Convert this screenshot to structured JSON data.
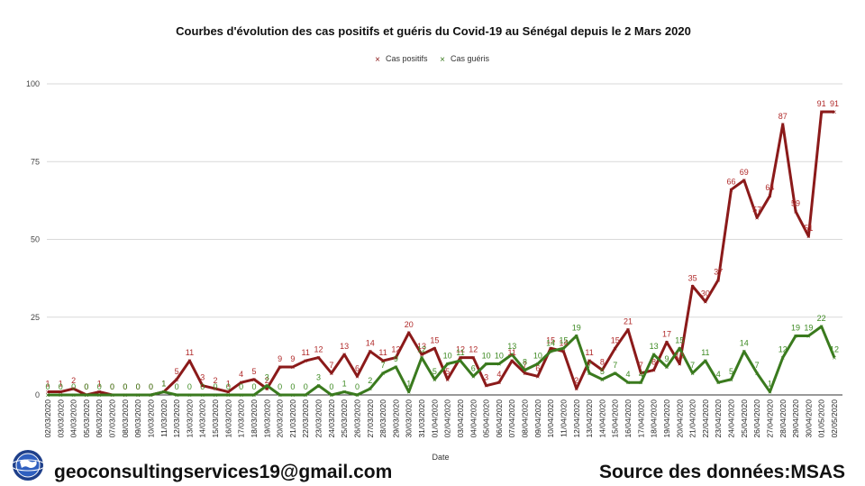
{
  "chart_data": {
    "type": "line",
    "title": "Courbes d'évolution des cas positifs et guéris du Covid-19 au Sénégal depuis le 2 Mars 2020",
    "xlabel": "Date",
    "ylabel": "",
    "ylim": [
      0,
      100
    ],
    "yticks": [
      0,
      25,
      50,
      75,
      100
    ],
    "grid": true,
    "legend_position": "top-center",
    "categories": [
      "02/03/2020",
      "03/03/2020",
      "04/03/2020",
      "05/03/2020",
      "06/03/2020",
      "07/03/2020",
      "08/03/2020",
      "09/03/2020",
      "10/03/2020",
      "11/03/2020",
      "12/03/2020",
      "13/03/2020",
      "14/03/2020",
      "15/03/2020",
      "16/03/2020",
      "17/03/2020",
      "18/03/2020",
      "19/03/2020",
      "20/03/2020",
      "21/03/2020",
      "22/03/2020",
      "23/03/2020",
      "24/03/2020",
      "25/03/2020",
      "26/03/2020",
      "27/03/2020",
      "28/03/2020",
      "29/03/2020",
      "30/03/2020",
      "31/03/2020",
      "01/04/2020",
      "02/04/2020",
      "03/04/2020",
      "04/04/2020",
      "05/04/2020",
      "06/04/2020",
      "07/04/2020",
      "08/04/2020",
      "09/04/2020",
      "10/04/2020",
      "11/04/2020",
      "12/04/2020",
      "13/04/2020",
      "14/04/2020",
      "15/04/2020",
      "16/04/2020",
      "17/04/2020",
      "18/04/2020",
      "19/04/2020",
      "20/04/2020",
      "21/04/2020",
      "22/04/2020",
      "23/04/2020",
      "24/04/2020",
      "25/04/2020",
      "26/04/2020",
      "27/04/2020",
      "28/04/2020",
      "29/04/2020",
      "30/04/2020",
      "01/05/2020",
      "02/05/2020"
    ],
    "series": [
      {
        "name": "Cas positifs",
        "color": "#8b1a1a",
        "label_color": "#b02a2a",
        "values": [
          1,
          1,
          2,
          0,
          1,
          0,
          0,
          0,
          0,
          1,
          5,
          11,
          3,
          2,
          1,
          4,
          5,
          2,
          9,
          9,
          11,
          12,
          7,
          13,
          6,
          14,
          11,
          12,
          20,
          13,
          15,
          5,
          12,
          12,
          3,
          4,
          11,
          7,
          6,
          15,
          14,
          2,
          11,
          8,
          15,
          21,
          7,
          8,
          17,
          10,
          35,
          30,
          37,
          66,
          69,
          57,
          64,
          87,
          59,
          51,
          91,
          91
        ]
      },
      {
        "name": "Cas guéris",
        "color": "#3a7a1e",
        "label_color": "#3d8a22",
        "values": [
          0,
          0,
          0,
          0,
          0,
          0,
          0,
          0,
          0,
          1,
          0,
          0,
          0,
          0,
          0,
          0,
          0,
          3,
          0,
          0,
          0,
          3,
          0,
          1,
          0,
          2,
          7,
          9,
          1,
          12,
          5,
          10,
          11,
          6,
          10,
          10,
          13,
          8,
          10,
          14,
          15,
          19,
          7,
          5,
          7,
          4,
          4,
          13,
          9,
          15,
          7,
          11,
          4,
          5,
          14,
          7,
          1,
          12,
          19,
          19,
          22,
          12
        ]
      }
    ]
  },
  "footer": {
    "email": "geoconsultingservices19@gmail.com",
    "source": "Source des données:MSAS"
  },
  "logo_icon": "globe-logo-icon"
}
